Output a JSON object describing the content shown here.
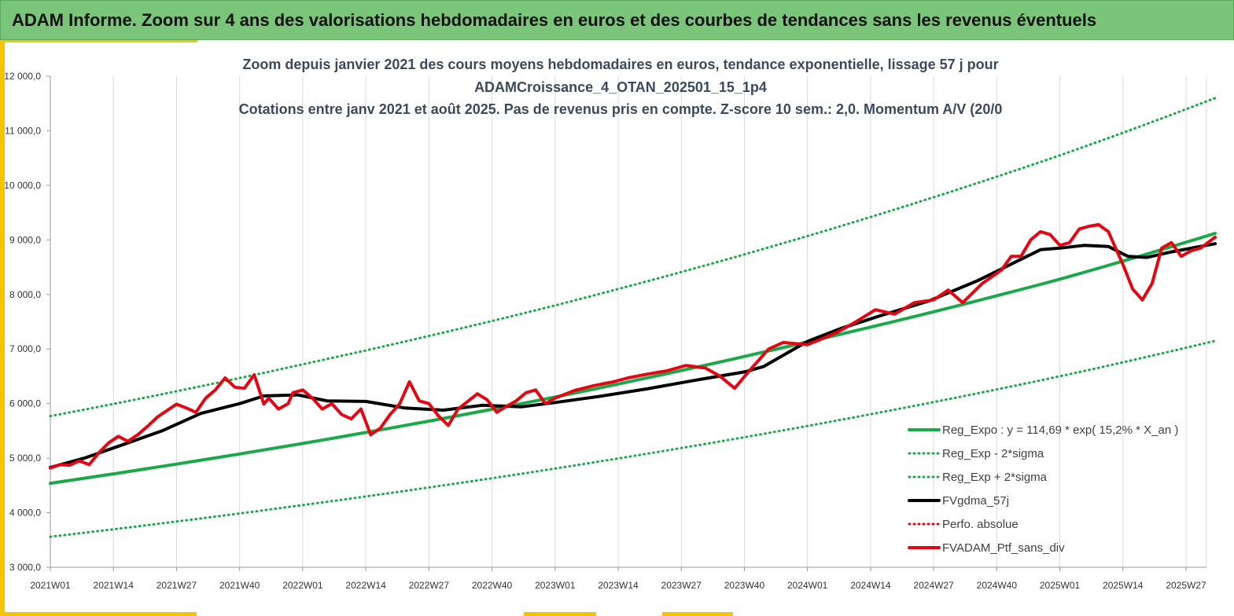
{
  "banner": {
    "title": "ADAM Informe. Zoom sur 4 ans des valorisations hebdomadaires en euros et des courbes de tendances sans les revenus éventuels"
  },
  "colors": {
    "banner": "#7ac57a",
    "accent": "#f5c400",
    "reg_expo": "#1ba84a",
    "sigma": "#1ba84a",
    "fvgdma": "#000000",
    "perfo": "#e30613",
    "ptf": "#e30613"
  },
  "chart_data": {
    "type": "line",
    "title_lines": [
      "Zoom depuis janvier 2021 des cours moyens hebdomadaires  en euros, tendance exponentielle, lissage 57 j pour",
      "ADAMCroissance_4_OTAN_202501_15_1p4",
      "Cotations entre janv 2021 et août 2025. Pas de revenus pris en compte. Z-score 10 sem.: 2,0. Momentum A/V (20/0"
    ],
    "x_tick_labels": [
      "2021W01",
      "2021W14",
      "2021W27",
      "2021W40",
      "2022W01",
      "2022W14",
      "2022W27",
      "2022W40",
      "2023W01",
      "2023W14",
      "2023W27",
      "2023W40",
      "2024W01",
      "2024W14",
      "2024W27",
      "2024W40",
      "2025W01",
      "2025W14",
      "2025W27"
    ],
    "y_tick_labels": [
      "3 000,0",
      "4 000,0",
      "5 000,0",
      "6 000,0",
      "7 000,0",
      "8 000,0",
      "9 000,0",
      "10 000,0",
      "11 000,0",
      "12 000,0"
    ],
    "ylim": [
      3000,
      12000
    ],
    "grid": "vertical",
    "legend_position": "bottom-right",
    "series": [
      {
        "name": "Reg_Expo : y = 114,69 * exp( 15,2% *  X_an )",
        "style": "solid-thick",
        "color": "#1ba84a",
        "x": [
          "2021W01",
          "2022W01",
          "2023W01",
          "2024W01",
          "2025W01",
          "2025W33"
        ],
        "y": [
          4540,
          5270,
          6120,
          7130,
          8280,
          9120
        ]
      },
      {
        "name": "Reg_Exp - 2*sigma",
        "style": "dotted",
        "color": "#1ba84a",
        "x": [
          "2021W01",
          "2022W01",
          "2023W01",
          "2024W01",
          "2025W01",
          "2025W33"
        ],
        "y": [
          3560,
          4140,
          4810,
          5590,
          6500,
          7150
        ]
      },
      {
        "name": "Reg_Exp + 2*sigma",
        "style": "dotted",
        "color": "#1ba84a",
        "x": [
          "2021W01",
          "2022W01",
          "2023W01",
          "2024W01",
          "2025W01",
          "2025W33"
        ],
        "y": [
          5770,
          6720,
          7800,
          9070,
          10550,
          11600
        ]
      },
      {
        "name": "FVgdma_57j",
        "style": "solid-thick",
        "color": "#000000",
        "x": [
          "2021W01",
          "2021W08",
          "2021W16",
          "2021W24",
          "2021W32",
          "2021W40",
          "2021W45",
          "2021W52",
          "2022W06",
          "2022W14",
          "2022W22",
          "2022W30",
          "2022W38",
          "2022W46",
          "2023W01",
          "2023W10",
          "2023W20",
          "2023W30",
          "2023W40",
          "2023W44",
          "2024W01",
          "2024W08",
          "2024W16",
          "2024W26",
          "2024W36",
          "2024W44",
          "2024W49",
          "2025W01",
          "2025W06",
          "2025W11",
          "2025W15",
          "2025W19",
          "2025W24",
          "2025W33"
        ],
        "y": [
          4830,
          5000,
          5250,
          5500,
          5820,
          6000,
          6140,
          6160,
          6050,
          6040,
          5920,
          5880,
          5970,
          5940,
          6020,
          6130,
          6270,
          6430,
          6580,
          6680,
          7140,
          7380,
          7610,
          7880,
          8250,
          8600,
          8820,
          8850,
          8900,
          8880,
          8700,
          8680,
          8780,
          8930
        ]
      },
      {
        "name": "Perfo. absolue",
        "style": "dotted",
        "color": "#e30613",
        "x": [],
        "y": []
      },
      {
        "name": "FVADAM_Ptf_sans_div",
        "style": "solid-thick",
        "color": "#e30613",
        "x": [
          "2021W01",
          "2021W03",
          "2021W05",
          "2021W07",
          "2021W09",
          "2021W11",
          "2021W13",
          "2021W15",
          "2021W17",
          "2021W19",
          "2021W21",
          "2021W23",
          "2021W25",
          "2021W27",
          "2021W29",
          "2021W31",
          "2021W33",
          "2021W35",
          "2021W37",
          "2021W39",
          "2021W41",
          "2021W43",
          "2021W45",
          "2021W46",
          "2021W48",
          "2021W50",
          "2021W51",
          "2022W01",
          "2022W03",
          "2022W05",
          "2022W07",
          "2022W09",
          "2022W11",
          "2022W13",
          "2022W15",
          "2022W17",
          "2022W19",
          "2022W21",
          "2022W23",
          "2022W25",
          "2022W27",
          "2022W29",
          "2022W31",
          "2022W33",
          "2022W35",
          "2022W37",
          "2022W39",
          "2022W41",
          "2022W43",
          "2022W45",
          "2022W47",
          "2022W49",
          "2022W51",
          "2023W01",
          "2023W05",
          "2023W09",
          "2023W13",
          "2023W16",
          "2023W20",
          "2023W24",
          "2023W28",
          "2023W32",
          "2023W35",
          "2023W38",
          "2023W41",
          "2023W43",
          "2023W45",
          "2023W48",
          "2024W01",
          "2024W03",
          "2024W07",
          "2024W11",
          "2024W15",
          "2024W19",
          "2024W23",
          "2024W27",
          "2024W30",
          "2024W33",
          "2024W37",
          "2024W41",
          "2024W43",
          "2024W45",
          "2024W47",
          "2024W49",
          "2024W51",
          "2025W01",
          "2025W03",
          "2025W05",
          "2025W07",
          "2025W09",
          "2025W11",
          "2025W12",
          "2025W14",
          "2025W16",
          "2025W18",
          "2025W20",
          "2025W22",
          "2025W24",
          "2025W26",
          "2025W28",
          "2025W30",
          "2025W33"
        ],
        "y": [
          4820,
          4880,
          4870,
          4950,
          4880,
          5100,
          5280,
          5400,
          5310,
          5430,
          5580,
          5750,
          5870,
          5990,
          5920,
          5840,
          6100,
          6250,
          6470,
          6300,
          6280,
          6530,
          5990,
          6100,
          5900,
          6000,
          6200,
          6250,
          6100,
          5900,
          6000,
          5800,
          5720,
          5900,
          5430,
          5550,
          5800,
          6000,
          6400,
          6050,
          6000,
          5770,
          5600,
          5900,
          6040,
          6180,
          6070,
          5840,
          5950,
          6050,
          6200,
          6250,
          6000,
          6100,
          6240,
          6330,
          6400,
          6470,
          6540,
          6600,
          6700,
          6650,
          6500,
          6280,
          6600,
          6800,
          7000,
          7120,
          7080,
          7150,
          7300,
          7500,
          7720,
          7640,
          7850,
          7900,
          8080,
          7850,
          8200,
          8450,
          8700,
          8700,
          9000,
          9150,
          9100,
          8900,
          8950,
          9200,
          9250,
          9280,
          9150,
          8950,
          8550,
          8100,
          7900,
          8200,
          8850,
          8950,
          8700,
          8800,
          8850,
          9050
        ]
      }
    ]
  }
}
